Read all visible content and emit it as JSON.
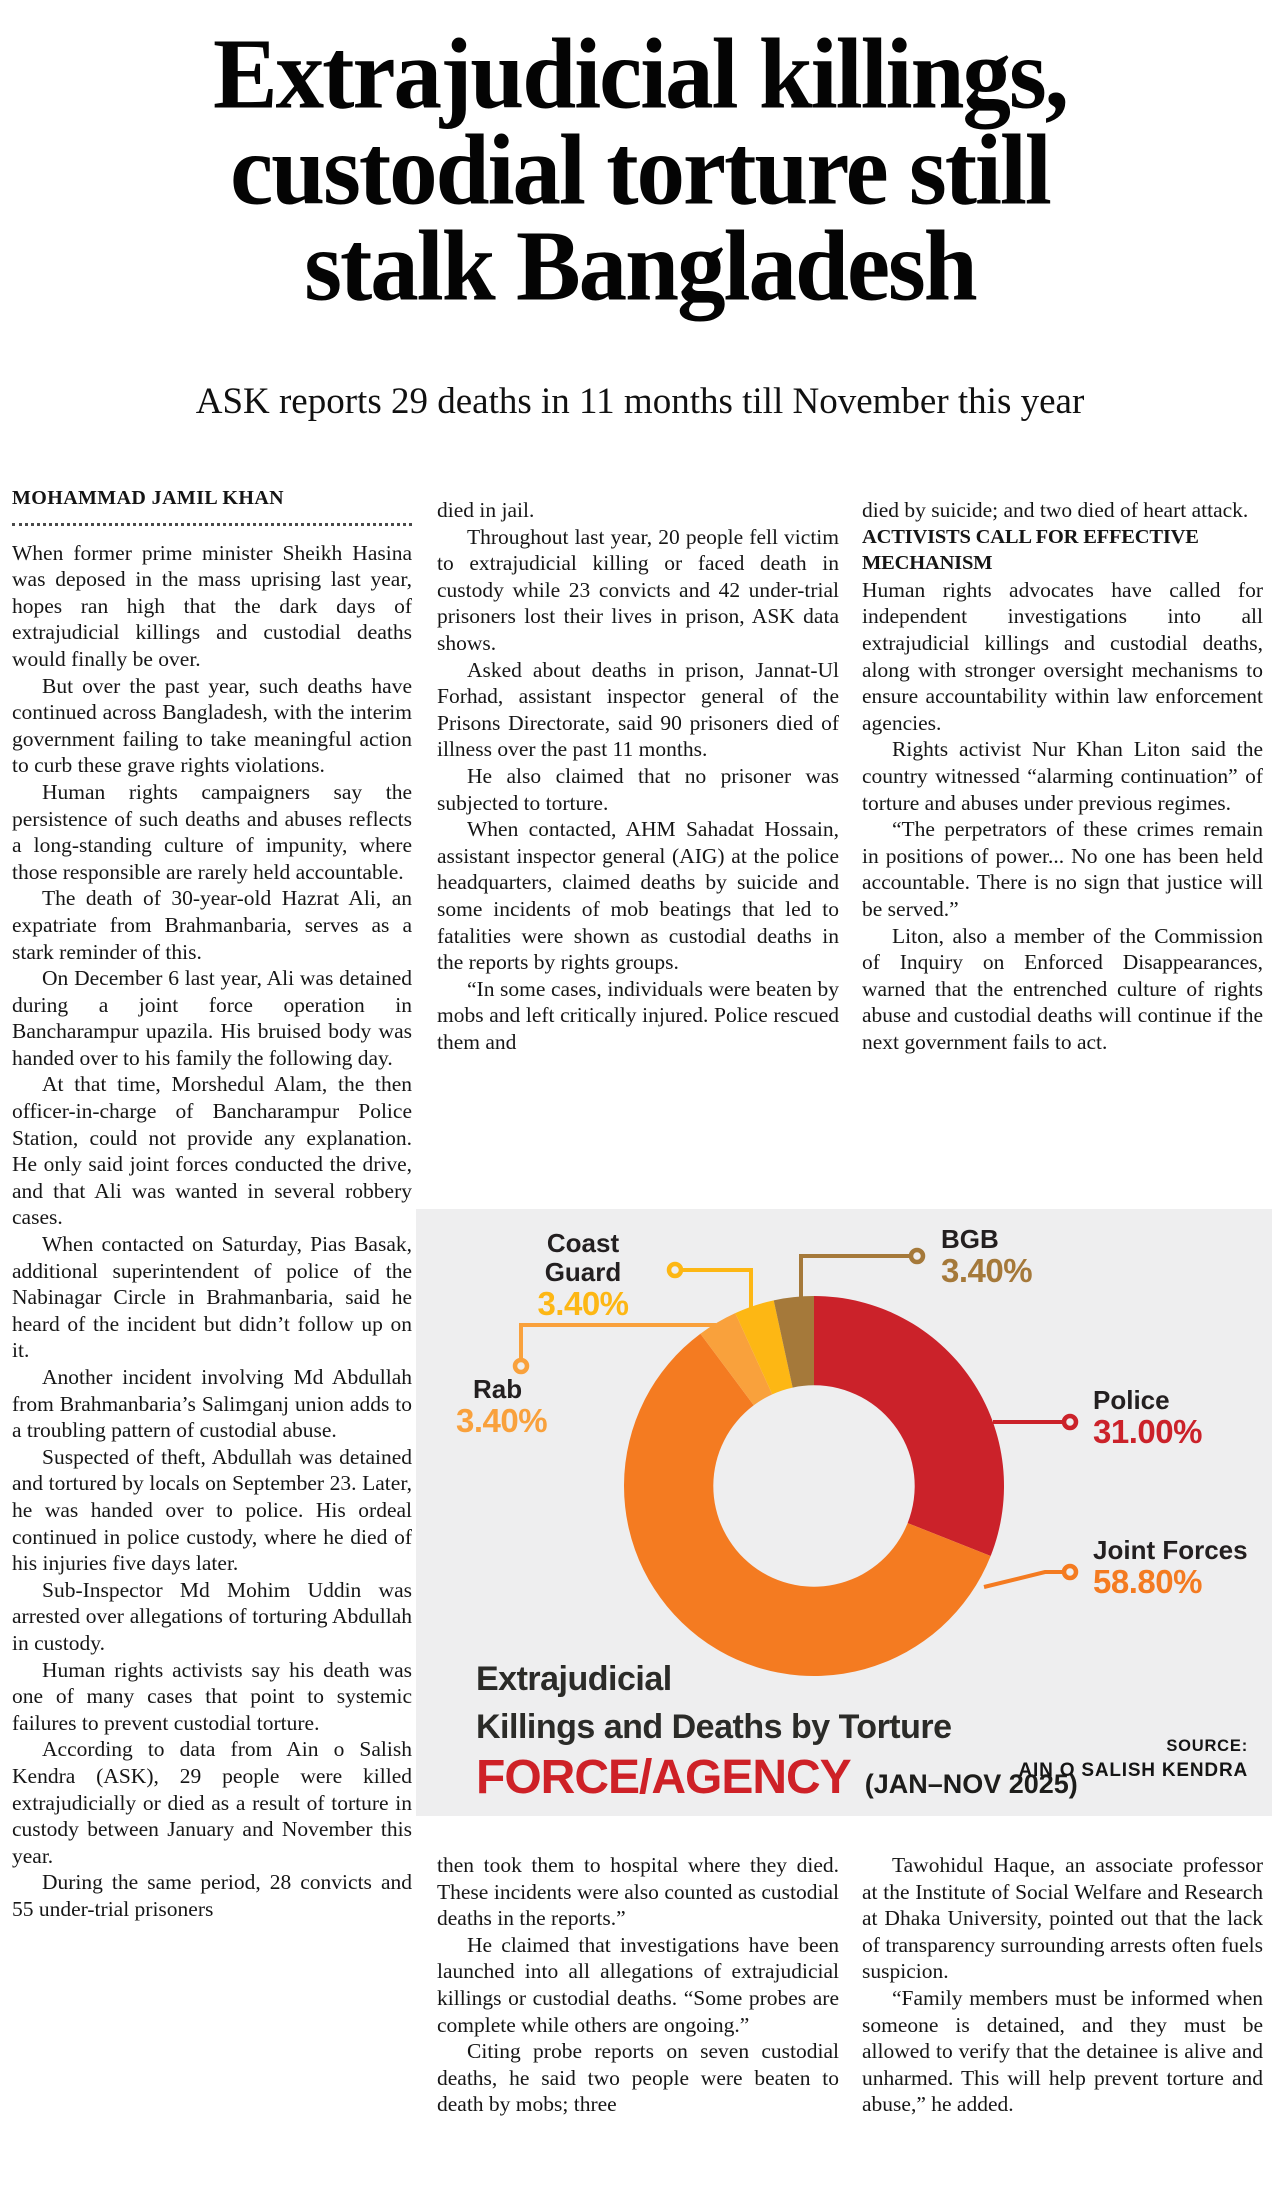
{
  "masthead": {
    "headline_lines": [
      "Extrajudicial killings,",
      "custodial torture still",
      "stalk Bangladesh"
    ],
    "subheadline": "ASK reports 29 deaths in 11 months till November this year",
    "byline": "MOHAMMAD JAMIL KHAN"
  },
  "article": {
    "col1": [
      {
        "noindent": true,
        "text": "When former prime minister Sheikh Hasina was deposed in the mass uprising last year, hopes ran high that the dark days of extrajudicial killings and custodial deaths would finally be over."
      },
      {
        "text": "But over the past year, such deaths have continued across Bangladesh, with the interim government failing to take meaningful action to curb these grave rights violations."
      },
      {
        "text": "Human rights campaigners say the persistence of such deaths and abuses reflects a long-standing culture of impunity, where those responsible are rarely held accountable."
      },
      {
        "text": "The death of 30-year-old Hazrat Ali, an expatriate from Brahmanbaria, serves as a stark reminder of this."
      },
      {
        "text": "On December 6 last year, Ali was detained during a joint force operation in Bancharampur upazila. His bruised body was handed over to his family the following day."
      },
      {
        "text": "At that time, Morshedul Alam, the then officer-in-charge of Bancharampur Police Station, could not provide any explanation. He only said joint forces conducted the drive, and that Ali was wanted in several robbery cases."
      },
      {
        "text": "When contacted on Saturday, Pias Basak, additional superintendent of police of the Nabinagar Circle in Brahmanbaria, said he heard of the incident but didn’t follow up on it."
      },
      {
        "text": "Another incident involving Md Abdullah from Brahmanbaria’s Salimganj union adds to a troubling pattern of custodial abuse."
      },
      {
        "text": "Suspected of theft, Abdullah was detained and tortured by locals on September 23. Later, he was handed over to police. His ordeal continued in police custody, where he died of his injuries five days later."
      },
      {
        "text": "Sub-Inspector Md Mohim Uddin was arrested over allegations of torturing Abdullah in custody."
      },
      {
        "text": "Human rights activists say his death was one of many cases that point to systemic failures to prevent custodial torture."
      },
      {
        "text": "According to data from Ain o Salish Kendra (ASK), 29 people were killed extrajudicially or died as a result of torture in custody between January and November this year."
      },
      {
        "text": "During the same period, 28 convicts and 55 under-trial prisoners"
      }
    ],
    "col2_top": [
      {
        "noindent": true,
        "text": "died in jail."
      },
      {
        "text": "Throughout last year, 20 people fell victim to extrajudicial killing or faced death in custody while 23 convicts and 42 under-trial prisoners lost their lives in prison, ASK data shows."
      },
      {
        "text": "Asked about deaths in prison, Jannat-Ul Forhad, assistant inspector general of the Prisons Directorate, said 90 prisoners died of illness over the past 11 months."
      },
      {
        "text": "He also claimed that no prisoner was subjected to torture."
      },
      {
        "text": "When contacted, AHM Sahadat Hossain, assistant inspector general (AIG) at the police headquarters, claimed deaths by suicide and some incidents of mob beatings that led to fatalities were shown as custodial deaths in the reports by rights groups."
      },
      {
        "text": "“In some cases, individuals were beaten by mobs and left critically injured. Police rescued them and"
      }
    ],
    "col2_bottom": [
      {
        "noindent": true,
        "text": "then took them to hospital where they died. These incidents were also counted as custodial deaths in the reports.”"
      },
      {
        "text": "He claimed that investigations have been launched into all allegations of extrajudicial killings or custodial deaths. “Some probes are complete while others are ongoing.”"
      },
      {
        "text": "Citing probe reports on seven custodial deaths, he said two people were beaten to death by mobs; three"
      }
    ],
    "col3_top": [
      {
        "noindent": true,
        "text": "died by suicide; and two died of heart attack."
      },
      {
        "subhead": true,
        "text": "ACTIVISTS CALL FOR EFFECTIVE MECHANISM"
      },
      {
        "noindent": true,
        "text": "Human rights advocates have called for independent investigations into all extrajudicial killings and custodial deaths, along with stronger oversight mechanisms to ensure accountability within law enforcement agencies."
      },
      {
        "text": "Rights activist Nur Khan Liton said the country witnessed “alarming continuation” of torture and abuses under previous regimes."
      },
      {
        "text": "“The perpetrators of these crimes remain in positions of power... No one has been held accountable. There is no sign that justice will be served.”"
      },
      {
        "text": "Liton, also a member of the Commission of Inquiry on Enforced Disappearances, warned that the entrenched culture of rights abuse and custodial deaths will continue if the next government fails to act."
      }
    ],
    "col3_bottom": [
      {
        "text": "Tawohidul Haque, an associate professor at the Institute of Social Welfare and Research at Dhaka University, pointed out that the lack of transparency surrounding arrests often fuels suspicion."
      },
      {
        "text": "“Family members must be informed when someone is detained, and they must be allowed to verify that the detainee is alive and unharmed. This will help prevent torture and abuse,” he added."
      }
    ]
  },
  "chart_data": {
    "type": "pie",
    "subtype": "donut",
    "title_lines": [
      "Extrajudicial",
      "Killings and Deaths by Torture"
    ],
    "title_emphasis": "FORCE/AGENCY",
    "title_emphasis_color": "#CE2127",
    "title_period": "(JAN–NOV 2025)",
    "source_label": "SOURCE:",
    "source_value": "AIN O SALISH KENDRA",
    "unit": "percent",
    "direction": "clockwise",
    "start_at": "top",
    "inner_radius_ratio": 0.53,
    "background": "#EEEEEF",
    "legend_position": "callout-labels",
    "slices": [
      {
        "label": "Police",
        "value": 31.0,
        "display": "31.00%",
        "color": "#CB222A"
      },
      {
        "label": "Joint Forces",
        "value": 58.8,
        "display": "58.80%",
        "color": "#F47B21"
      },
      {
        "label": "Rab",
        "value": 3.4,
        "display": "3.40%",
        "color": "#F9A13C"
      },
      {
        "label": "Coast Guard",
        "value": 3.4,
        "display": "3.40%",
        "color": "#FDB714"
      },
      {
        "label": "BGB",
        "value": 3.4,
        "display": "3.40%",
        "color": "#A5793A"
      }
    ]
  }
}
